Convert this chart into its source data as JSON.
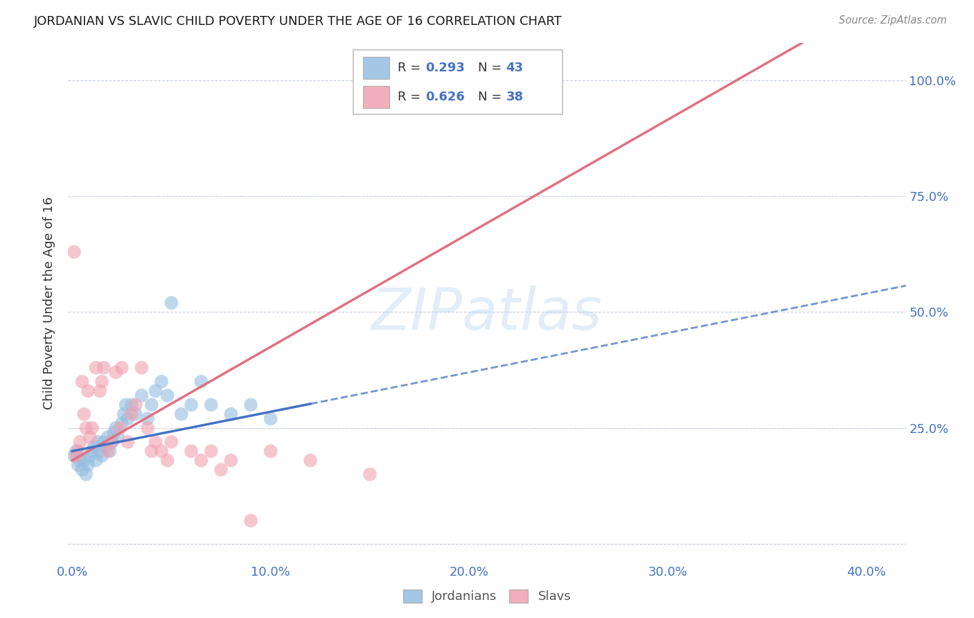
{
  "title": "JORDANIAN VS SLAVIC CHILD POVERTY UNDER THE AGE OF 16 CORRELATION CHART",
  "source": "Source: ZipAtlas.com",
  "ylabel": "Child Poverty Under the Age of 16",
  "background_color": "#ffffff",
  "jordanians_color": "#93bde0",
  "slavs_color": "#f0a0b0",
  "jordanians_line_color": "#4472c4",
  "slavs_line_color": "#e07080",
  "legend_R1": "0.293",
  "legend_N1": "43",
  "legend_R2": "0.626",
  "legend_N2": "38",
  "jordanians_x": [
    0.001,
    0.002,
    0.003,
    0.004,
    0.005,
    0.006,
    0.007,
    0.008,
    0.009,
    0.01,
    0.011,
    0.012,
    0.013,
    0.014,
    0.015,
    0.016,
    0.017,
    0.018,
    0.019,
    0.02,
    0.021,
    0.022,
    0.023,
    0.025,
    0.026,
    0.027,
    0.028,
    0.03,
    0.032,
    0.035,
    0.038,
    0.04,
    0.042,
    0.045,
    0.048,
    0.05,
    0.055,
    0.06,
    0.065,
    0.07,
    0.08,
    0.09,
    0.1
  ],
  "jordanians_y": [
    0.19,
    0.2,
    0.17,
    0.18,
    0.16,
    0.18,
    0.15,
    0.17,
    0.19,
    0.2,
    0.21,
    0.18,
    0.22,
    0.2,
    0.19,
    0.22,
    0.21,
    0.23,
    0.2,
    0.22,
    0.24,
    0.25,
    0.23,
    0.26,
    0.28,
    0.3,
    0.27,
    0.3,
    0.28,
    0.32,
    0.27,
    0.3,
    0.33,
    0.35,
    0.32,
    0.52,
    0.28,
    0.3,
    0.35,
    0.3,
    0.28,
    0.3,
    0.27
  ],
  "slavs_x": [
    0.001,
    0.002,
    0.003,
    0.004,
    0.005,
    0.006,
    0.007,
    0.008,
    0.009,
    0.01,
    0.012,
    0.014,
    0.015,
    0.016,
    0.018,
    0.02,
    0.022,
    0.024,
    0.025,
    0.028,
    0.03,
    0.032,
    0.035,
    0.038,
    0.04,
    0.042,
    0.045,
    0.048,
    0.05,
    0.06,
    0.065,
    0.07,
    0.075,
    0.08,
    0.09,
    0.1,
    0.12,
    0.15
  ],
  "slavs_y": [
    0.63,
    0.19,
    0.2,
    0.22,
    0.35,
    0.28,
    0.25,
    0.33,
    0.23,
    0.25,
    0.38,
    0.33,
    0.35,
    0.38,
    0.2,
    0.22,
    0.37,
    0.25,
    0.38,
    0.22,
    0.28,
    0.3,
    0.38,
    0.25,
    0.2,
    0.22,
    0.2,
    0.18,
    0.22,
    0.2,
    0.18,
    0.2,
    0.16,
    0.18,
    0.05,
    0.2,
    0.18,
    0.15
  ],
  "xlim": [
    -0.002,
    0.42
  ],
  "ylim": [
    -0.04,
    1.08
  ],
  "xticks": [
    0.0,
    0.1,
    0.2,
    0.3,
    0.4
  ],
  "xtick_labels": [
    "0.0%",
    "10.0%",
    "20.0%",
    "30.0%",
    "40.0%"
  ],
  "yticks": [
    0.0,
    0.25,
    0.5,
    0.75,
    1.0
  ],
  "ytick_labels": [
    "",
    "25.0%",
    "50.0%",
    "75.0%",
    "100.0%"
  ],
  "slavic_line_slope": 2.45,
  "slavic_line_intercept": 0.18,
  "jordanian_line_slope": 0.85,
  "jordanian_line_intercept": 0.2
}
